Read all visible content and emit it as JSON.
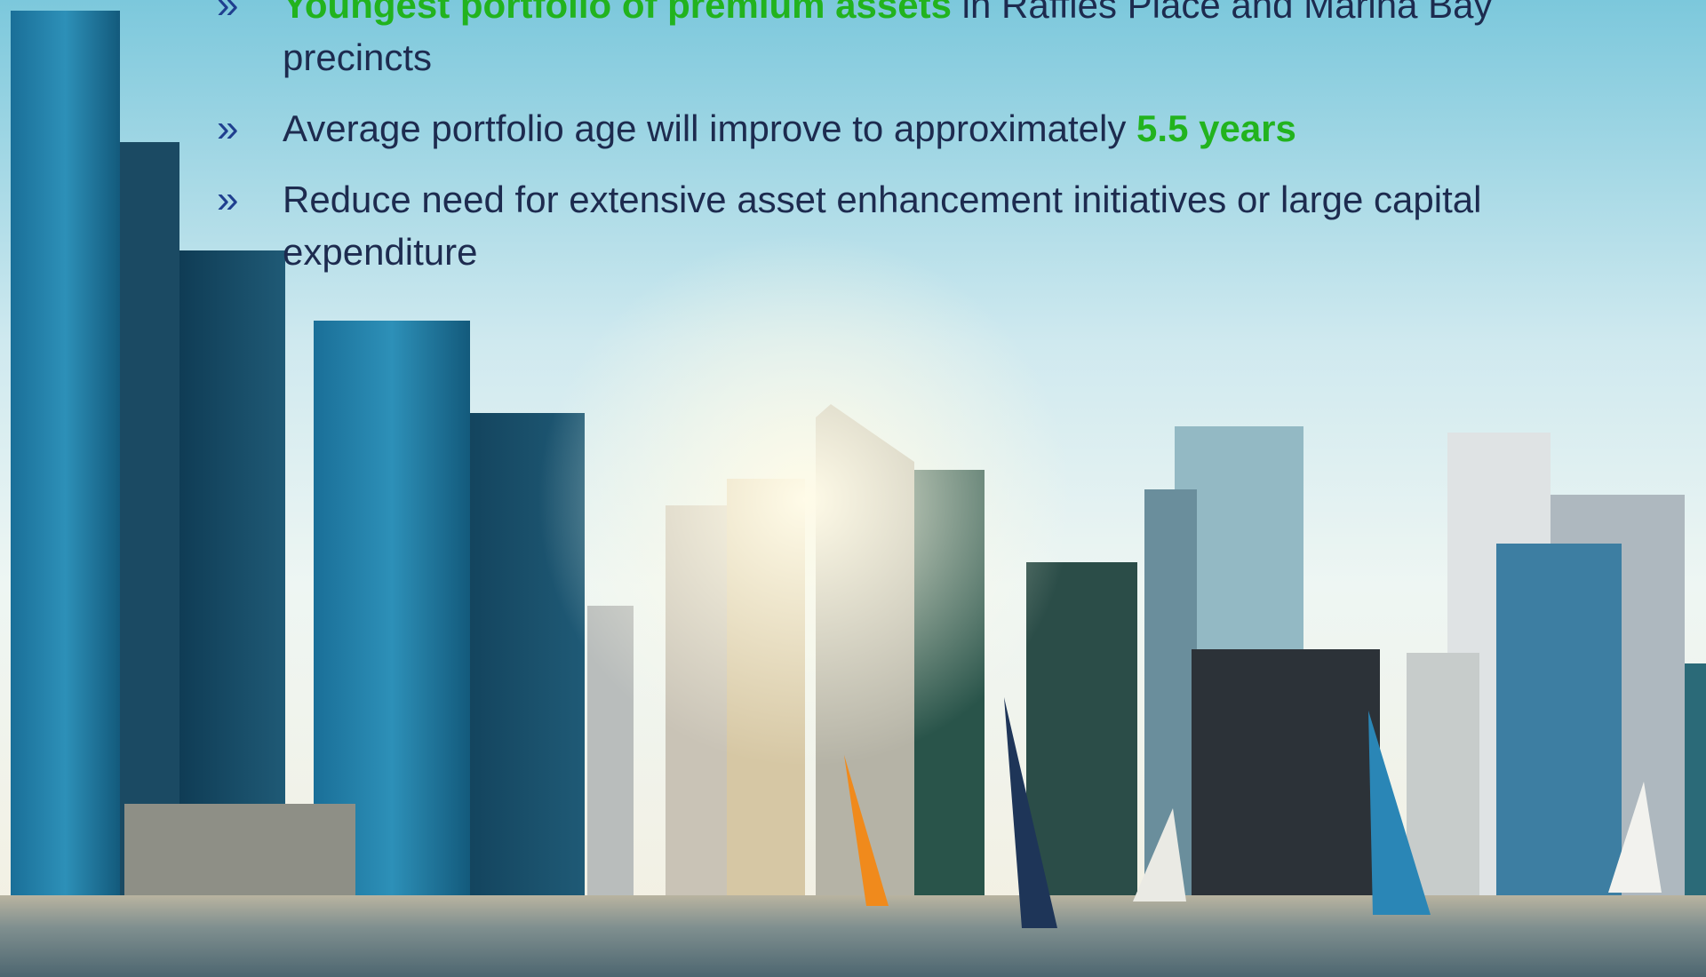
{
  "bullets": [
    {
      "marker": "»",
      "segments": [
        {
          "text": "Youngest portfolio of premium assets",
          "highlight": true
        },
        {
          "text": "in Raffles Place and Marina Bay precincts",
          "highlight": false
        }
      ]
    },
    {
      "marker": "»",
      "segments": [
        {
          "text": "Average portfolio age will improve to approximately",
          "highlight": false
        },
        {
          "text": "5.5 years",
          "highlight": true
        }
      ]
    },
    {
      "marker": "»",
      "segments": [
        {
          "text": "Reduce need for extensive asset enhancement initiatives or large capital expenditure",
          "highlight": false
        }
      ]
    }
  ]
}
